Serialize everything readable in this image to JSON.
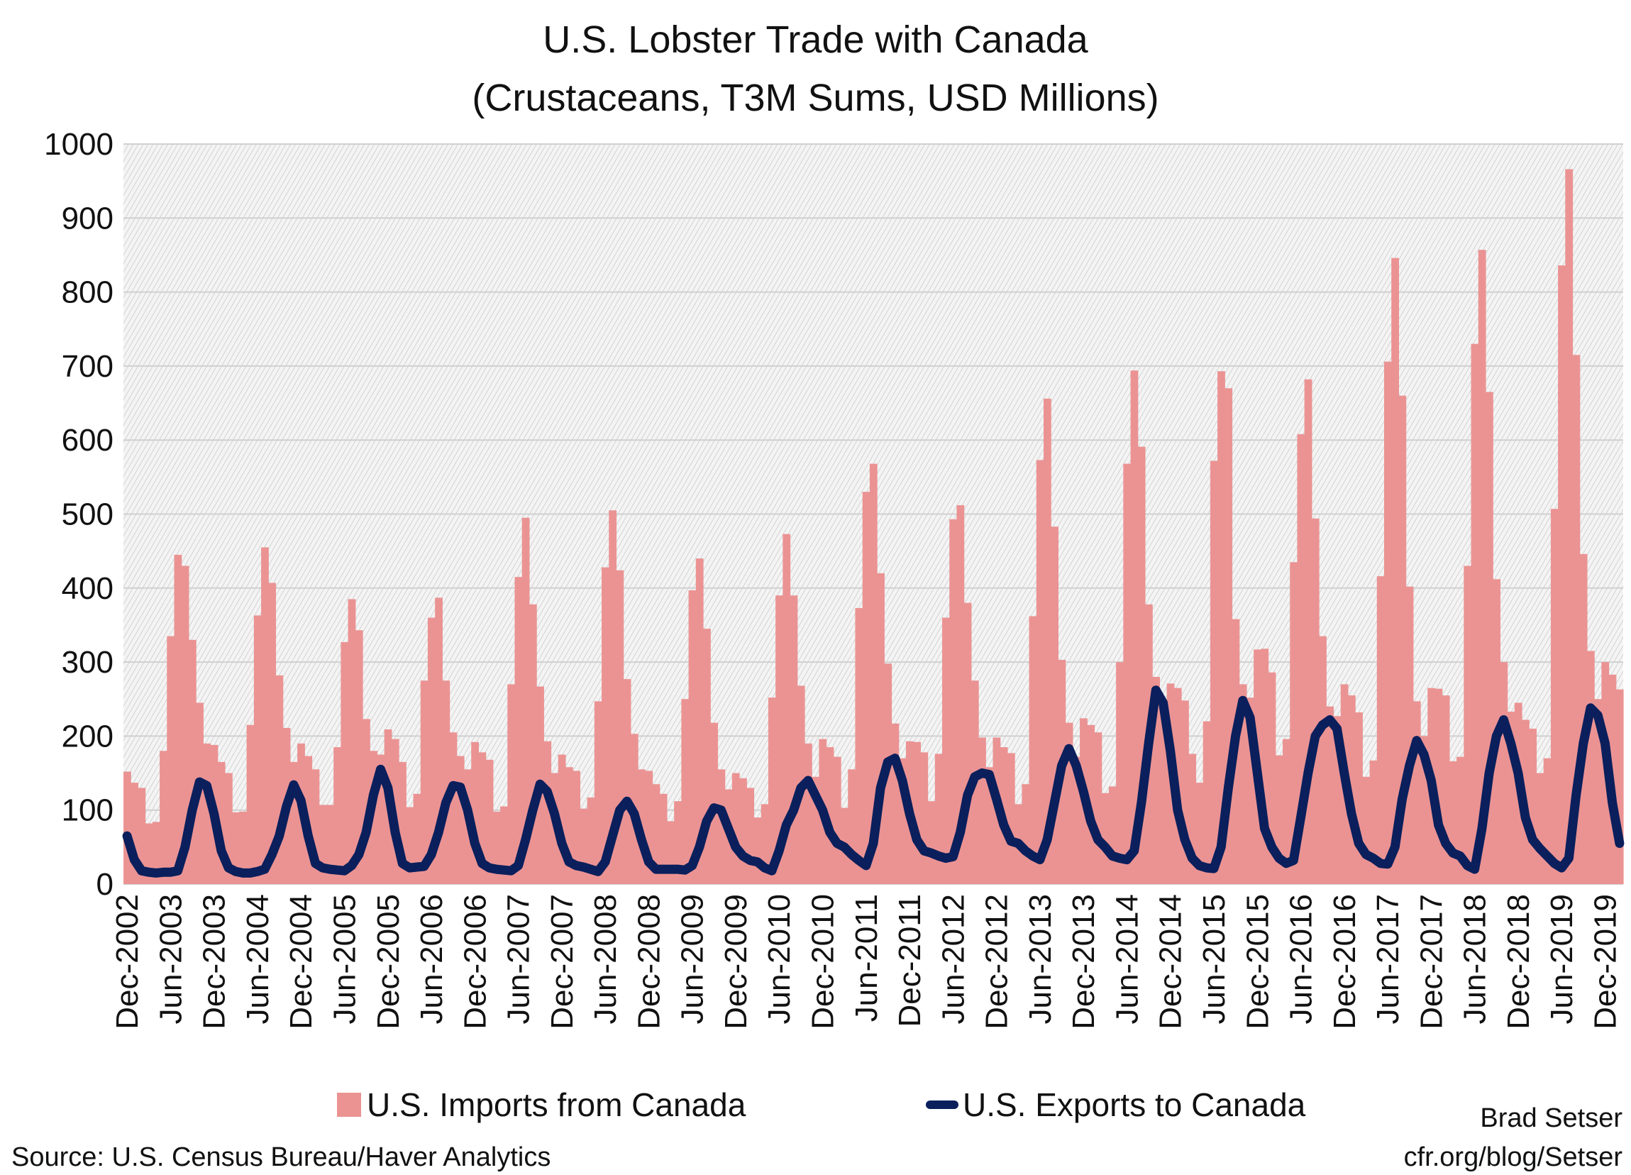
{
  "chart_data": {
    "type": "bar+line",
    "title": "U.S. Lobster Trade with Canada",
    "subtitle": "(Crustaceans, T3M Sums, USD Millions)",
    "xlabel": "",
    "ylabel": "",
    "ylim": [
      0,
      1000
    ],
    "yticks": [
      0,
      100,
      200,
      300,
      400,
      500,
      600,
      700,
      800,
      900,
      1000
    ],
    "grid": true,
    "legend_position": "bottom",
    "x_start": "Dec-2002",
    "x_end": "Feb-2020",
    "frequency": "monthly",
    "xtick_labels": [
      "Dec-2002",
      "Jun-2003",
      "Dec-2003",
      "Jun-2004",
      "Dec-2004",
      "Jun-2005",
      "Dec-2005",
      "Jun-2006",
      "Dec-2006",
      "Jun-2007",
      "Dec-2007",
      "Jun-2008",
      "Dec-2008",
      "Jun-2009",
      "Dec-2009",
      "Jun-2010",
      "Dec-2010",
      "Jun-2011",
      "Dec-2011",
      "Jun-2012",
      "Dec-2012",
      "Jun-2013",
      "Dec-2013",
      "Jun-2014",
      "Dec-2014",
      "Jun-2015",
      "Dec-2015",
      "Jun-2016",
      "Dec-2016",
      "Jun-2017",
      "Dec-2017",
      "Jun-2018",
      "Dec-2018",
      "Jun-2019",
      "Dec-2019"
    ],
    "series": [
      {
        "name": "U.S. Imports from Canada",
        "type": "bar",
        "color": "#eb9393",
        "values": [
          152,
          137,
          130,
          82,
          84,
          180,
          335,
          445,
          430,
          330,
          245,
          190,
          188,
          165,
          150,
          97,
          98,
          215,
          363,
          455,
          407,
          282,
          211,
          165,
          190,
          173,
          155,
          107,
          107,
          185,
          327,
          385,
          343,
          223,
          180,
          175,
          209,
          196,
          165,
          104,
          122,
          275,
          360,
          387,
          275,
          205,
          173,
          155,
          192,
          178,
          168,
          98,
          105,
          270,
          415,
          495,
          378,
          267,
          193,
          150,
          175,
          158,
          153,
          102,
          117,
          247,
          428,
          505,
          424,
          277,
          203,
          155,
          153,
          135,
          122,
          85,
          112,
          250,
          397,
          440,
          345,
          218,
          155,
          128,
          150,
          143,
          130,
          90,
          108,
          252,
          390,
          473,
          390,
          268,
          190,
          145,
          196,
          185,
          172,
          103,
          155,
          373,
          530,
          568,
          420,
          298,
          217,
          170,
          193,
          192,
          178,
          112,
          176,
          360,
          493,
          512,
          380,
          275,
          198,
          158,
          198,
          185,
          177,
          108,
          135,
          362,
          573,
          656,
          483,
          303,
          218,
          172,
          224,
          215,
          205,
          123,
          132,
          300,
          568,
          694,
          591,
          378,
          280,
          238,
          271,
          265,
          248,
          176,
          137,
          220,
          572,
          693,
          670,
          358,
          270,
          252,
          317,
          318,
          286,
          174,
          196,
          435,
          608,
          682,
          494,
          335,
          240,
          227,
          270,
          255,
          232,
          145,
          167,
          416,
          706,
          846,
          660,
          402,
          247,
          200,
          265,
          264,
          255,
          166,
          172,
          430,
          730,
          857,
          665,
          412,
          300,
          233,
          245,
          222,
          210,
          150,
          170,
          507,
          836,
          966,
          715,
          446,
          315,
          250,
          300,
          283,
          263
        ]
      },
      {
        "name": "U.S. Exports to Canada",
        "type": "line",
        "color": "#0a1f5c",
        "values": [
          65,
          33,
          18,
          16,
          15,
          16,
          16,
          18,
          50,
          100,
          138,
          133,
          95,
          45,
          22,
          17,
          15,
          15,
          17,
          20,
          40,
          65,
          105,
          134,
          113,
          65,
          28,
          22,
          20,
          19,
          18,
          25,
          40,
          70,
          120,
          155,
          130,
          70,
          28,
          22,
          23,
          24,
          40,
          70,
          110,
          133,
          131,
          100,
          55,
          28,
          22,
          20,
          19,
          18,
          25,
          60,
          100,
          135,
          125,
          95,
          55,
          30,
          25,
          23,
          20,
          17,
          30,
          65,
          100,
          112,
          95,
          60,
          30,
          20,
          20,
          20,
          20,
          19,
          25,
          50,
          85,
          103,
          100,
          75,
          50,
          38,
          32,
          30,
          22,
          18,
          45,
          80,
          100,
          130,
          140,
          120,
          100,
          70,
          55,
          50,
          40,
          32,
          25,
          55,
          130,
          165,
          170,
          140,
          95,
          60,
          45,
          42,
          38,
          35,
          37,
          70,
          120,
          145,
          150,
          148,
          115,
          80,
          58,
          55,
          45,
          38,
          33,
          60,
          110,
          160,
          183,
          160,
          125,
          85,
          60,
          50,
          38,
          35,
          33,
          45,
          110,
          190,
          262,
          245,
          180,
          100,
          60,
          35,
          25,
          22,
          21,
          50,
          130,
          200,
          248,
          225,
          150,
          75,
          50,
          35,
          28,
          32,
          90,
          150,
          200,
          215,
          222,
          210,
          150,
          95,
          55,
          40,
          35,
          28,
          27,
          50,
          115,
          160,
          194,
          175,
          140,
          80,
          55,
          42,
          38,
          25,
          20,
          75,
          150,
          200,
          222,
          190,
          150,
          90,
          60,
          48,
          38,
          28,
          22,
          35,
          120,
          190,
          238,
          228,
          190,
          110,
          55
        ]
      }
    ]
  },
  "legend": {
    "imports": "U.S. Imports from Canada",
    "exports": "U.S. Exports to Canada"
  },
  "footer": {
    "source": "Source: U.S. Census Bureau/Haver Analytics",
    "author": "Brad Setser",
    "url": "cfr.org/blog/Setser"
  }
}
